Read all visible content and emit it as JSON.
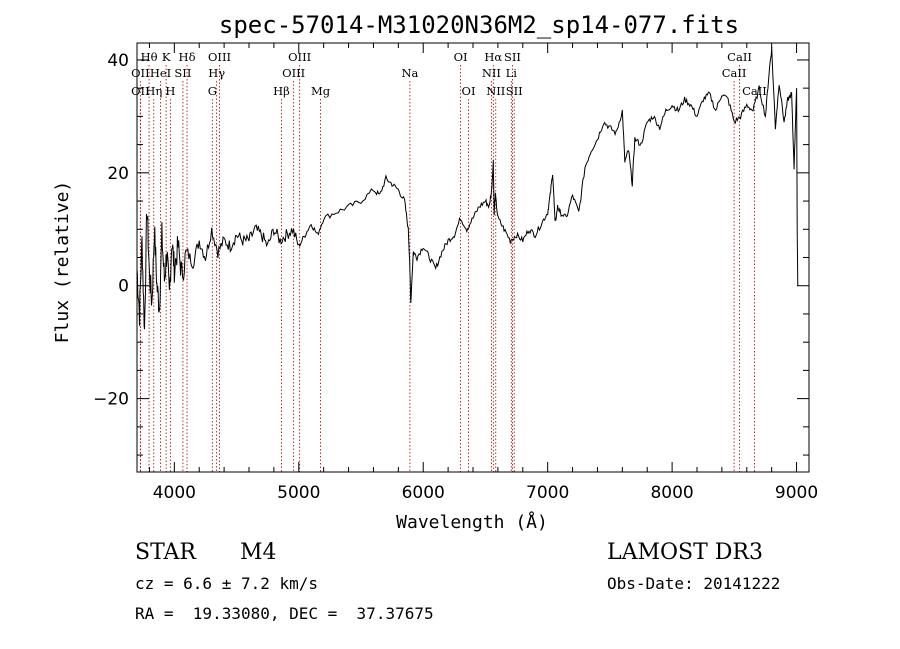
{
  "chart_data": {
    "type": "line",
    "title": "spec-57014-M31020N36M2_sp14-077.fits",
    "xlabel": "Wavelength (Å)",
    "ylabel": "Flux (relative)",
    "xlim": [
      3700,
      9100
    ],
    "ylim": [
      -33,
      43
    ],
    "xticks": [
      4000,
      5000,
      6000,
      7000,
      8000,
      9000
    ],
    "xtick_labels": [
      "4000",
      "5000",
      "6000",
      "7000",
      "8000",
      "9000"
    ],
    "yticks": [
      -20,
      0,
      20,
      40
    ],
    "ytick_labels": [
      "−20",
      "0",
      "20",
      "40"
    ],
    "series": [
      {
        "name": "flux",
        "x": [
          3700,
          3720,
          3740,
          3760,
          3780,
          3800,
          3820,
          3840,
          3860,
          3880,
          3900,
          3920,
          3940,
          3960,
          3980,
          4000,
          4030,
          4060,
          4100,
          4150,
          4200,
          4250,
          4300,
          4350,
          4400,
          4450,
          4500,
          4550,
          4600,
          4650,
          4700,
          4750,
          4800,
          4850,
          4900,
          4950,
          5000,
          5050,
          5100,
          5150,
          5200,
          5300,
          5400,
          5500,
          5600,
          5650,
          5700,
          5750,
          5800,
          5850,
          5880,
          5890,
          5900,
          5920,
          5950,
          6000,
          6050,
          6100,
          6150,
          6200,
          6250,
          6300,
          6350,
          6400,
          6450,
          6500,
          6530,
          6550,
          6563,
          6570,
          6580,
          6600,
          6650,
          6700,
          6750,
          6800,
          6850,
          6900,
          6950,
          7000,
          7020,
          7040,
          7060,
          7080,
          7100,
          7150,
          7200,
          7250,
          7300,
          7350,
          7400,
          7450,
          7500,
          7550,
          7600,
          7620,
          7650,
          7680,
          7700,
          7750,
          7800,
          7850,
          7900,
          7950,
          8000,
          8050,
          8100,
          8150,
          8200,
          8250,
          8300,
          8350,
          8400,
          8450,
          8500,
          8550,
          8600,
          8650,
          8700,
          8750,
          8780,
          8800,
          8830,
          8860,
          8900,
          8930,
          8960,
          8980,
          9000,
          9005,
          9010
        ],
        "y": [
          3,
          -5,
          8,
          -8,
          14,
          2,
          -3,
          10,
          0,
          -4,
          9,
          1,
          6,
          -2,
          8,
          3,
          7,
          2,
          6,
          4,
          8,
          5,
          10,
          6,
          8,
          7,
          9,
          8,
          8,
          10,
          9,
          7,
          10,
          8,
          9,
          10,
          7,
          9,
          11,
          9,
          12,
          13,
          14,
          15,
          17,
          16,
          19,
          18,
          17,
          15,
          10,
          5,
          -3,
          6,
          5,
          7,
          5,
          3,
          6,
          8,
          9,
          12,
          10,
          12,
          14,
          15,
          14,
          17,
          22,
          13,
          16,
          12,
          10,
          8,
          9,
          8,
          10,
          9,
          11,
          13,
          16,
          20,
          11,
          14,
          13,
          12,
          16,
          13,
          21,
          24,
          26,
          29,
          28,
          27,
          31,
          22,
          24,
          18,
          26,
          25,
          29,
          30,
          28,
          31,
          32,
          31,
          33,
          32,
          30,
          33,
          34,
          31,
          34,
          33,
          29,
          30,
          32,
          31,
          35,
          30,
          38,
          42,
          28,
          36,
          29,
          33,
          34,
          21,
          35,
          10,
          0
        ]
      }
    ],
    "spectral_lines": [
      {
        "label": "Hθ",
        "wavelength": 3797,
        "row": 0
      },
      {
        "label": "OII",
        "wavelength": 3727,
        "row": 1
      },
      {
        "label": "OII",
        "wavelength": 3727,
        "row": 2
      },
      {
        "label": "Hη",
        "wavelength": 3835,
        "row": 2
      },
      {
        "label": "K",
        "wavelength": 3934,
        "row": 0
      },
      {
        "label": "HeI",
        "wavelength": 3889,
        "row": 1
      },
      {
        "label": "SII",
        "wavelength": 4069,
        "row": 1
      },
      {
        "label": "H",
        "wavelength": 3968,
        "row": 2
      },
      {
        "label": "Hδ",
        "wavelength": 4102,
        "row": 0
      },
      {
        "label": "OIII",
        "wavelength": 4363,
        "row": 0
      },
      {
        "label": "Hγ",
        "wavelength": 4340,
        "row": 1
      },
      {
        "label": "G",
        "wavelength": 4305,
        "row": 2
      },
      {
        "label": "OIII",
        "wavelength": 5007,
        "row": 0
      },
      {
        "label": "OIII",
        "wavelength": 4959,
        "row": 1
      },
      {
        "label": "Hβ",
        "wavelength": 4861,
        "row": 2
      },
      {
        "label": "Mg",
        "wavelength": 5175,
        "row": 2
      },
      {
        "label": "Na",
        "wavelength": 5893,
        "row": 1
      },
      {
        "label": "OI",
        "wavelength": 6300,
        "row": 0
      },
      {
        "label": "OI",
        "wavelength": 6364,
        "row": 2
      },
      {
        "label": "Hα",
        "wavelength": 6563,
        "row": 0
      },
      {
        "label": "NII",
        "wavelength": 6548,
        "row": 1
      },
      {
        "label": "NII",
        "wavelength": 6583,
        "row": 2
      },
      {
        "label": "SII",
        "wavelength": 6717,
        "row": 0
      },
      {
        "label": "Li",
        "wavelength": 6708,
        "row": 1
      },
      {
        "label": "SII",
        "wavelength": 6731,
        "row": 2
      },
      {
        "label": "CaII",
        "wavelength": 8542,
        "row": 0
      },
      {
        "label": "CaII",
        "wavelength": 8498,
        "row": 1
      },
      {
        "label": "CaII",
        "wavelength": 8662,
        "row": 2
      }
    ]
  },
  "info": {
    "object_class": "STAR",
    "subclass": "M4",
    "redshift": "cz = 6.6 ± 7.2 km/s",
    "coordinates": "RA =  19.33080, DEC =  37.37675",
    "survey": "LAMOST DR3",
    "obs_date": "Obs-Date: 20141222"
  }
}
